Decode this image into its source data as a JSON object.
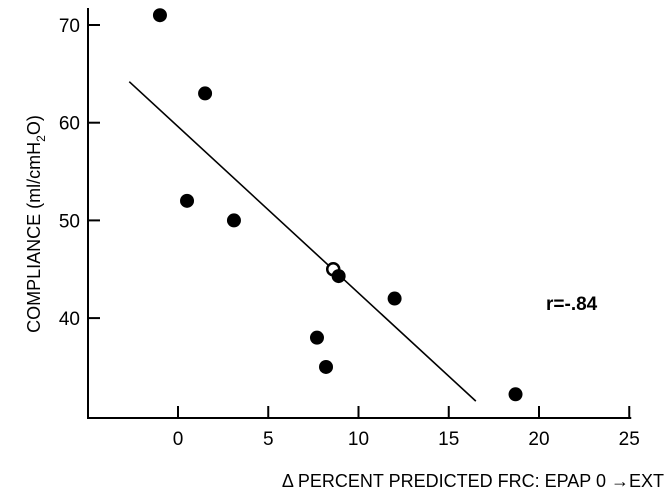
{
  "chart_data": {
    "type": "scatter",
    "title": "",
    "xlabel_parts": {
      "delta_symbol": "Δ",
      "text": " PERCENT PREDICTED FRC: EPAP  0 ",
      "arrow": "→",
      "end": "EXT"
    },
    "ylabel_parts": {
      "prefix": "COMPLIANCE (ml/cmH",
      "subscript": "2",
      "suffix": "O)"
    },
    "xlim": [
      -5,
      25
    ],
    "ylim": [
      30,
      72
    ],
    "x_ticks": [
      0,
      5,
      10,
      15,
      20,
      25
    ],
    "y_ticks": [
      40,
      50,
      60,
      70
    ],
    "grid": false,
    "points": [
      {
        "x": -1.0,
        "y": 71.0,
        "style": "filled"
      },
      {
        "x": 1.5,
        "y": 63.0,
        "style": "filled"
      },
      {
        "x": 0.5,
        "y": 52.0,
        "style": "filled"
      },
      {
        "x": 3.1,
        "y": 50.0,
        "style": "filled"
      },
      {
        "x": 8.6,
        "y": 45.0,
        "style": "open"
      },
      {
        "x": 8.9,
        "y": 44.3,
        "style": "filled"
      },
      {
        "x": 12.0,
        "y": 42.0,
        "style": "filled"
      },
      {
        "x": 7.7,
        "y": 38.0,
        "style": "filled"
      },
      {
        "x": 8.2,
        "y": 35.0,
        "style": "filled"
      },
      {
        "x": 18.7,
        "y": 32.2,
        "style": "filled"
      }
    ],
    "regression_line": {
      "x": [
        -2.7,
        16.5
      ],
      "y": [
        64.2,
        31.5
      ]
    },
    "annotation": "r=-.84"
  }
}
